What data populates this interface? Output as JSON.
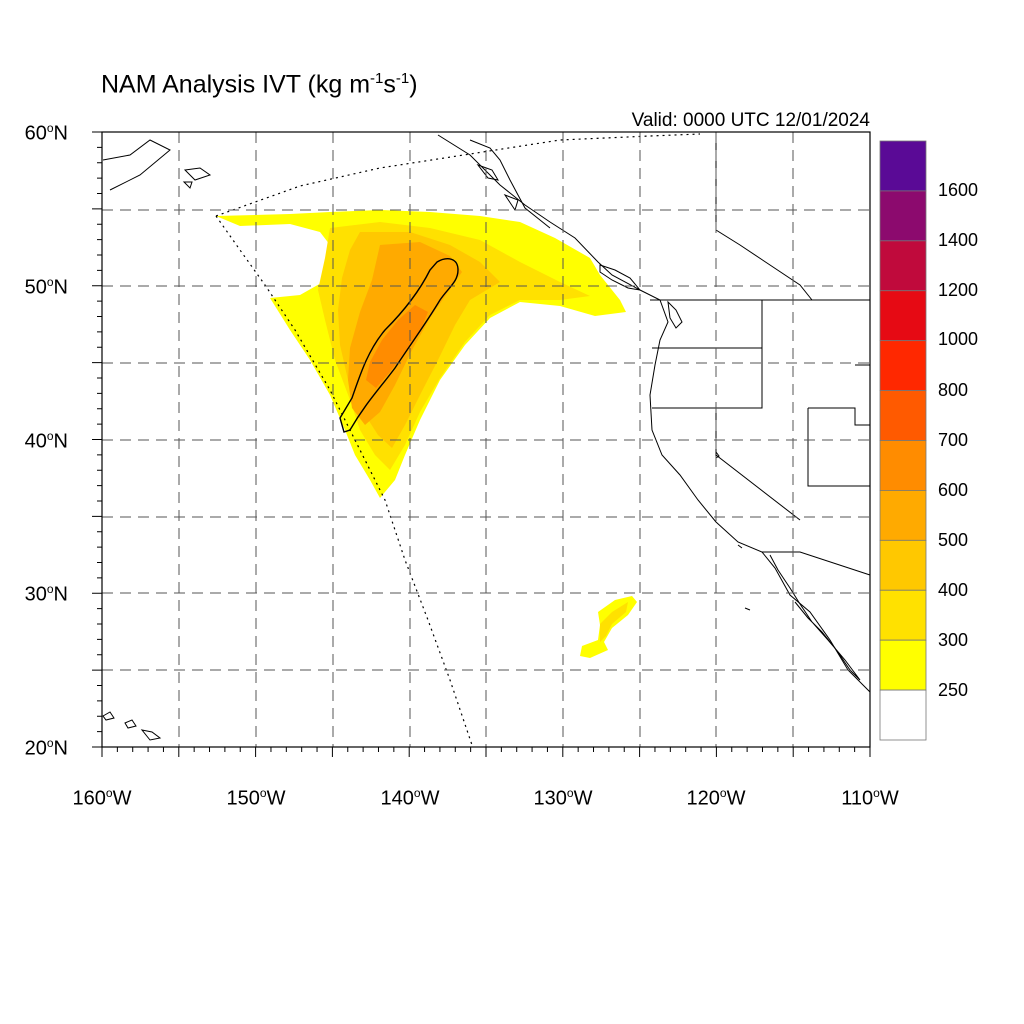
{
  "title": {
    "text": "NAM Analysis IVT (kg m",
    "exp1": "-1",
    "mid": "s",
    "exp2": "-1",
    "close": ")"
  },
  "valid_text": "Valid: 0000 UTC 12/01/2024",
  "lat_labels": [
    {
      "value": "60",
      "hemi": "N"
    },
    {
      "value": "50",
      "hemi": "N"
    },
    {
      "value": "40",
      "hemi": "N"
    },
    {
      "value": "30",
      "hemi": "N"
    },
    {
      "value": "20",
      "hemi": "N"
    }
  ],
  "lon_labels": [
    {
      "value": "160",
      "hemi": "W"
    },
    {
      "value": "150",
      "hemi": "W"
    },
    {
      "value": "140",
      "hemi": "W"
    },
    {
      "value": "130",
      "hemi": "W"
    },
    {
      "value": "120",
      "hemi": "W"
    },
    {
      "value": "110",
      "hemi": "W"
    }
  ],
  "degree_symbol": "o",
  "colorbar": {
    "labels": [
      "1600",
      "1400",
      "1200",
      "1000",
      "800",
      "700",
      "600",
      "500",
      "400",
      "300",
      "250"
    ],
    "colors": [
      "#5a0a96",
      "#8c0a6e",
      "#c00a3c",
      "#e60a14",
      "#ff2800",
      "#ff5a00",
      "#ff8c00",
      "#ffaa00",
      "#ffc800",
      "#ffe100",
      "#ffff00",
      "#ffffff"
    ]
  },
  "map": {
    "lat_range": [
      20,
      60
    ],
    "lon_range": [
      -160,
      -110
    ],
    "graticule_step": 5,
    "contour_level": 500
  }
}
